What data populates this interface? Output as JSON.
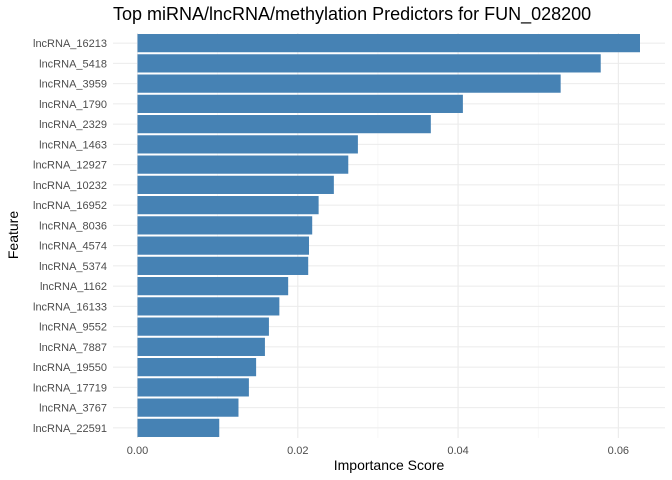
{
  "chart_data": {
    "type": "bar",
    "orientation": "horizontal",
    "title": "Top miRNA/lncRNA/methylation Predictors for FUN_028200",
    "xlabel": "Importance Score",
    "ylabel": "Feature",
    "xlim": [
      0,
      0.065
    ],
    "xticks": [
      0.0,
      0.02,
      0.04,
      0.06
    ],
    "xtick_labels": [
      "0.00",
      "0.02",
      "0.04",
      "0.06"
    ],
    "grid": true,
    "bar_color": "#4682B4",
    "categories": [
      "lncRNA_16213",
      "lncRNA_5418",
      "lncRNA_3959",
      "lncRNA_1790",
      "lncRNA_2329",
      "lncRNA_1463",
      "lncRNA_12927",
      "lncRNA_10232",
      "lncRNA_16952",
      "lncRNA_8036",
      "lncRNA_4574",
      "lncRNA_5374",
      "lncRNA_1162",
      "lncRNA_16133",
      "lncRNA_9552",
      "lncRNA_7887",
      "lncRNA_19550",
      "lncRNA_17719",
      "lncRNA_3767",
      "lncRNA_22591"
    ],
    "values": [
      0.0627,
      0.0578,
      0.0528,
      0.0406,
      0.0366,
      0.0275,
      0.0263,
      0.0245,
      0.0226,
      0.0218,
      0.0214,
      0.0213,
      0.0188,
      0.0177,
      0.0164,
      0.0159,
      0.0148,
      0.0139,
      0.0126,
      0.0102
    ]
  }
}
